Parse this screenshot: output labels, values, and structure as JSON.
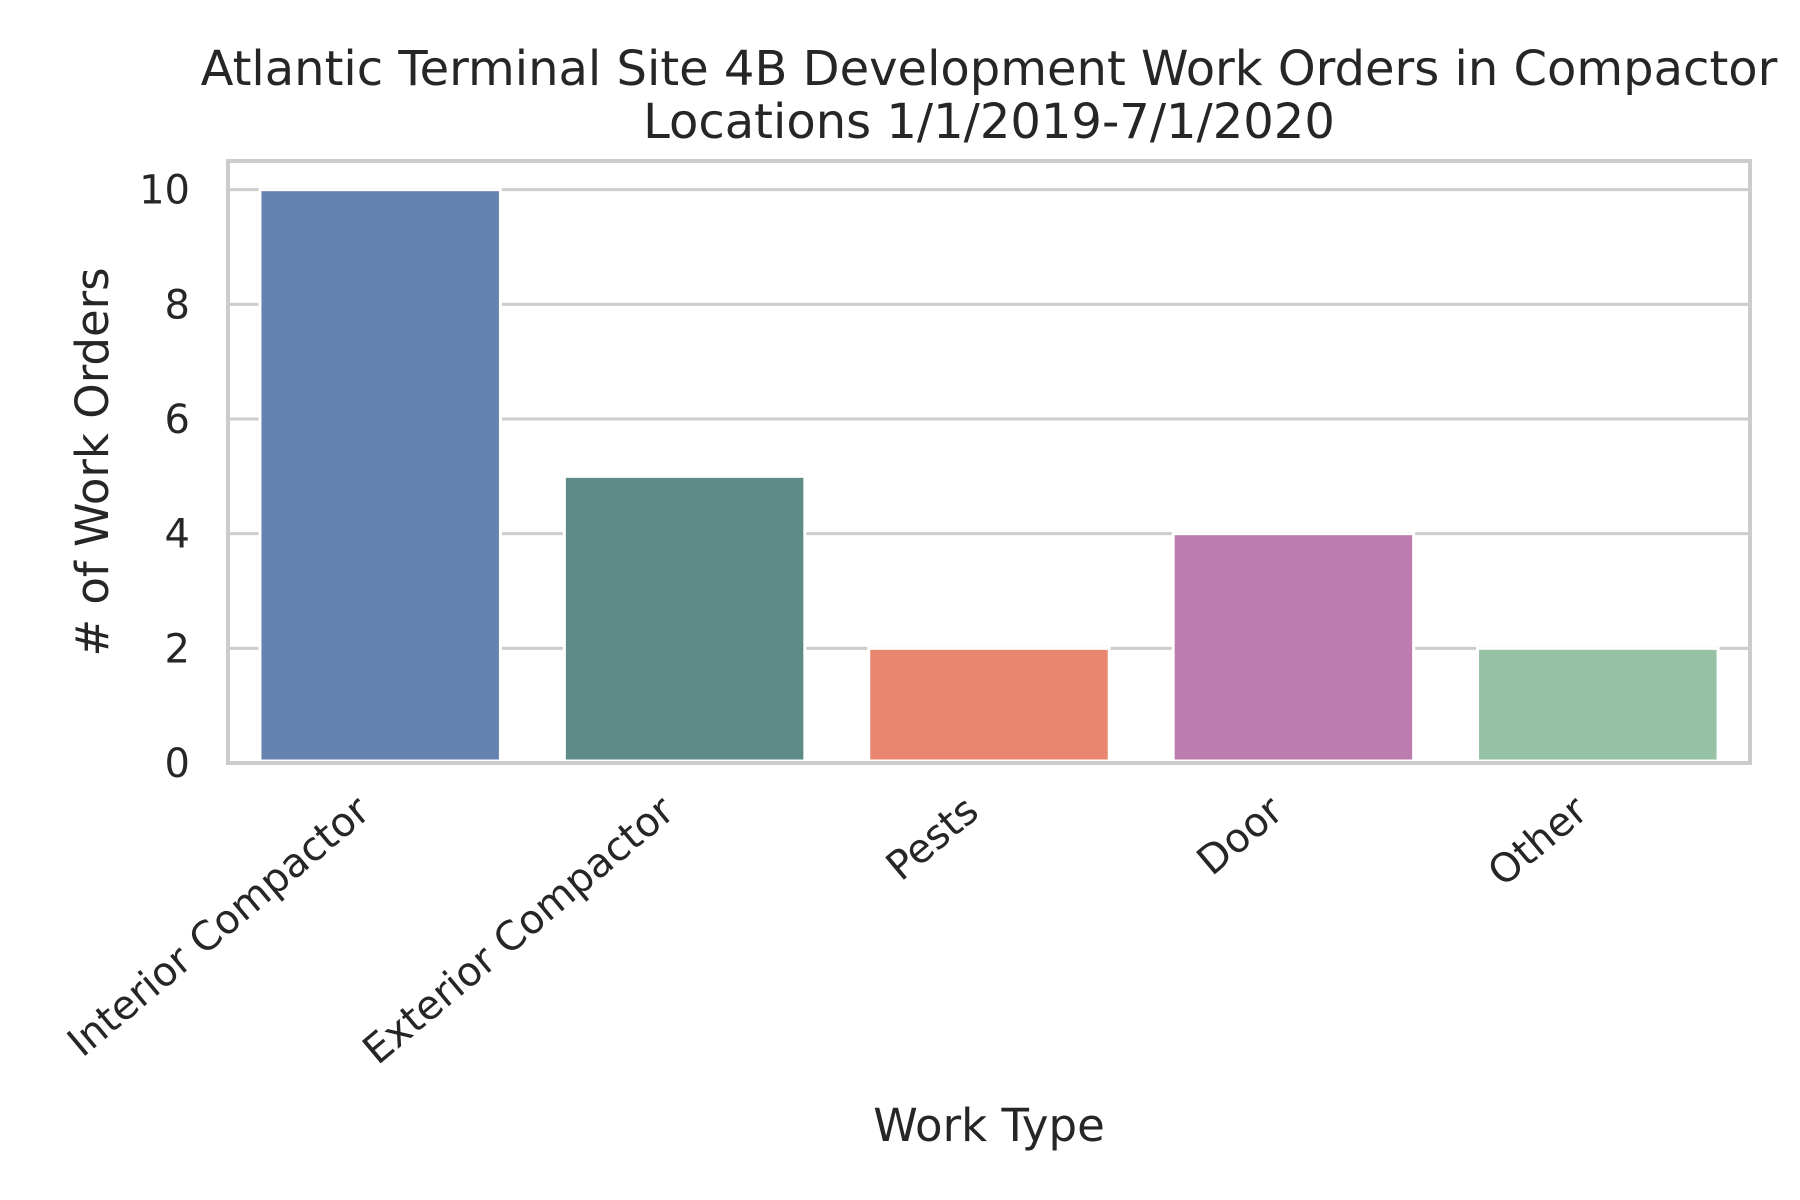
{
  "chart_data": {
    "type": "bar",
    "title": "Atlantic Terminal Site 4B Development Work Orders in Compactor Locations 1/1/2019-7/1/2020",
    "title_lines": [
      "Atlantic Terminal Site 4B Development Work Orders in Compactor",
      "Locations 1/1/2019-7/1/2020"
    ],
    "xlabel": "Work Type",
    "ylabel": "# of Work Orders",
    "categories": [
      "Interior Compactor",
      "Exterior Compactor",
      "Pests",
      "Door",
      "Other"
    ],
    "values": [
      10,
      5,
      2,
      4,
      2
    ],
    "colors": [
      "#6682b0",
      "#5e8a87",
      "#e9866f",
      "#bd7caf",
      "#96c1a5"
    ],
    "ylim": [
      0,
      10.5
    ],
    "yticks": [
      0,
      2,
      4,
      6,
      8,
      10
    ],
    "grid": "horizontal",
    "legend": "none"
  }
}
